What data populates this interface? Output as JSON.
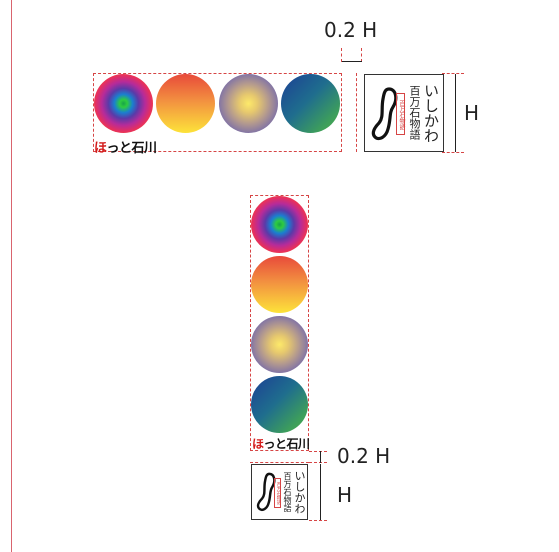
{
  "dimensions": {
    "gap_label": "0.2 H",
    "height_label": "H"
  },
  "brand": {
    "ho": "ほ",
    "rest": "っと石川"
  },
  "logo": {
    "line1": "いしかわ",
    "line2": "百万石物語",
    "stamp": "百万石物語"
  },
  "symbols": [
    "rainbow-circle",
    "sunset-circle",
    "glow-circle",
    "sea-circle"
  ],
  "colors": {
    "guide": "#d64545",
    "brand_red": "#d31b1b",
    "line": "#222222"
  }
}
